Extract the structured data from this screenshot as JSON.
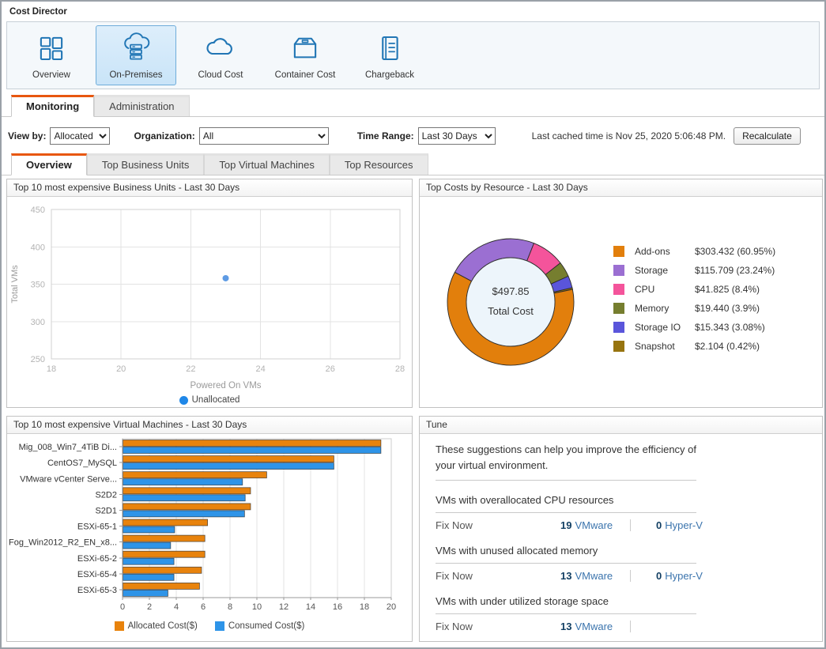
{
  "app": {
    "title": "Cost Director"
  },
  "toolbar": {
    "items": [
      {
        "label": "Overview",
        "icon": "dashboard-icon",
        "selected": false
      },
      {
        "label": "On-Premises",
        "icon": "on-premises-cloud-server-icon",
        "selected": true
      },
      {
        "label": "Cloud Cost",
        "icon": "cloud-icon",
        "selected": false
      },
      {
        "label": "Container Cost",
        "icon": "container-box-icon",
        "selected": false
      },
      {
        "label": "Chargeback",
        "icon": "ledger-icon",
        "selected": false
      }
    ]
  },
  "main_tabs": [
    {
      "label": "Monitoring",
      "active": true
    },
    {
      "label": "Administration",
      "active": false
    }
  ],
  "filters": {
    "view_by_label": "View by:",
    "view_by_value": "Allocated",
    "organization_label": "Organization:",
    "organization_value": "All",
    "time_range_label": "Time Range:",
    "time_range_value": "Last 30 Days",
    "cached_text": "Last cached time is Nov 25, 2020 5:06:48 PM.",
    "recalculate_label": "Recalculate"
  },
  "sub_tabs": [
    {
      "label": "Overview",
      "active": true
    },
    {
      "label": "Top Business Units",
      "active": false
    },
    {
      "label": "Top Virtual Machines",
      "active": false
    },
    {
      "label": "Top Resources",
      "active": false
    }
  ],
  "panels": {
    "business_units": {
      "title": "Top 10 most expensive Business Units - Last 30 Days"
    },
    "resources": {
      "title": "Top Costs by Resource - Last 30 Days"
    },
    "virtual_machines": {
      "title": "Top 10 most expensive Virtual Machines - Last 30 Days"
    },
    "tune": {
      "title": "Tune",
      "intro": "These suggestions can help you improve the efficiency of your virtual environment.",
      "sections": [
        {
          "heading": "VMs with overallocated CPU resources",
          "fix_label": "Fix Now",
          "vmware_count": "19",
          "vmware_label": "VMware",
          "hyperv_count": "0",
          "hyperv_label": "Hyper-V"
        },
        {
          "heading": "VMs with unused allocated memory",
          "fix_label": "Fix Now",
          "vmware_count": "13",
          "vmware_label": "VMware",
          "hyperv_count": "0",
          "hyperv_label": "Hyper-V"
        },
        {
          "heading": "VMs with under utilized storage space",
          "fix_label": "Fix Now",
          "vmware_count": "13",
          "vmware_label": "VMware",
          "hyperv_count": null,
          "hyperv_label": null
        }
      ]
    }
  },
  "chart_data": [
    {
      "type": "scatter",
      "title": "Top 10 most expensive Business Units - Last 30 Days",
      "xlabel": "Powered On VMs",
      "ylabel": "Total VMs",
      "xlim": [
        18,
        28
      ],
      "ylim": [
        250,
        450
      ],
      "xticks": [
        18,
        20,
        22,
        24,
        26,
        28
      ],
      "yticks": [
        250,
        300,
        350,
        400,
        450
      ],
      "grid": true,
      "legend_position": "bottom",
      "series": [
        {
          "name": "Unallocated",
          "color": "#5e9be4",
          "legend_color": "#1f87e8",
          "points": [
            {
              "x": 23,
              "y": 358
            }
          ]
        }
      ]
    },
    {
      "type": "pie",
      "title": "Top Costs by Resource - Last 30 Days",
      "center_value": "$497.85",
      "center_label": "Total Cost",
      "start_angle_deg": -62,
      "segment_order": [
        1,
        2,
        3,
        4,
        5,
        0
      ],
      "slices": [
        {
          "label": "Add-ons",
          "value": 303.432,
          "pct": 60.95,
          "display": "$303.432 (60.95%)",
          "color": "#e27f0c"
        },
        {
          "label": "Storage",
          "value": 115.709,
          "pct": 23.24,
          "display": "$115.709 (23.24%)",
          "color": "#9b6fd2"
        },
        {
          "label": "CPU",
          "value": 41.825,
          "pct": 8.4,
          "display": "$41.825 (8.4%)",
          "color": "#f4549b"
        },
        {
          "label": "Memory",
          "value": 19.44,
          "pct": 3.9,
          "display": "$19.440 (3.9%)",
          "color": "#767e2f"
        },
        {
          "label": "Storage IO",
          "value": 15.343,
          "pct": 3.08,
          "display": "$15.343 (3.08%)",
          "color": "#5a55db"
        },
        {
          "label": "Snapshot",
          "value": 2.104,
          "pct": 0.42,
          "display": "$2.104 (0.42%)",
          "color": "#97740f"
        }
      ]
    },
    {
      "type": "bar",
      "orientation": "horizontal",
      "title": "Top 10 most expensive Virtual Machines - Last 30 Days",
      "categories": [
        "Mig_008_Win7_4TiB Di...",
        "CentOS7_MySQL",
        "VMware vCenter Serve...",
        "S2D2",
        "S2D1",
        "ESXi-65-1",
        "Fog_Win2012_R2_EN_x8...",
        "ESXi-65-2",
        "ESXi-65-4",
        "ESXi-65-3"
      ],
      "xlim": [
        0,
        20
      ],
      "xticks": [
        0,
        2,
        4,
        6,
        8,
        10,
        12,
        14,
        16,
        18,
        20
      ],
      "grid": true,
      "legend_position": "bottom",
      "series": [
        {
          "name": "Allocated Cost($)",
          "color": "#e8830d",
          "values": [
            19.2,
            15.7,
            10.7,
            9.5,
            9.5,
            6.3,
            6.1,
            6.1,
            5.85,
            5.7
          ]
        },
        {
          "name": "Consumed Cost($)",
          "color": "#2e94e8",
          "values": [
            19.2,
            15.7,
            8.9,
            9.1,
            9.05,
            3.85,
            3.55,
            3.8,
            3.8,
            3.35
          ]
        }
      ]
    }
  ]
}
